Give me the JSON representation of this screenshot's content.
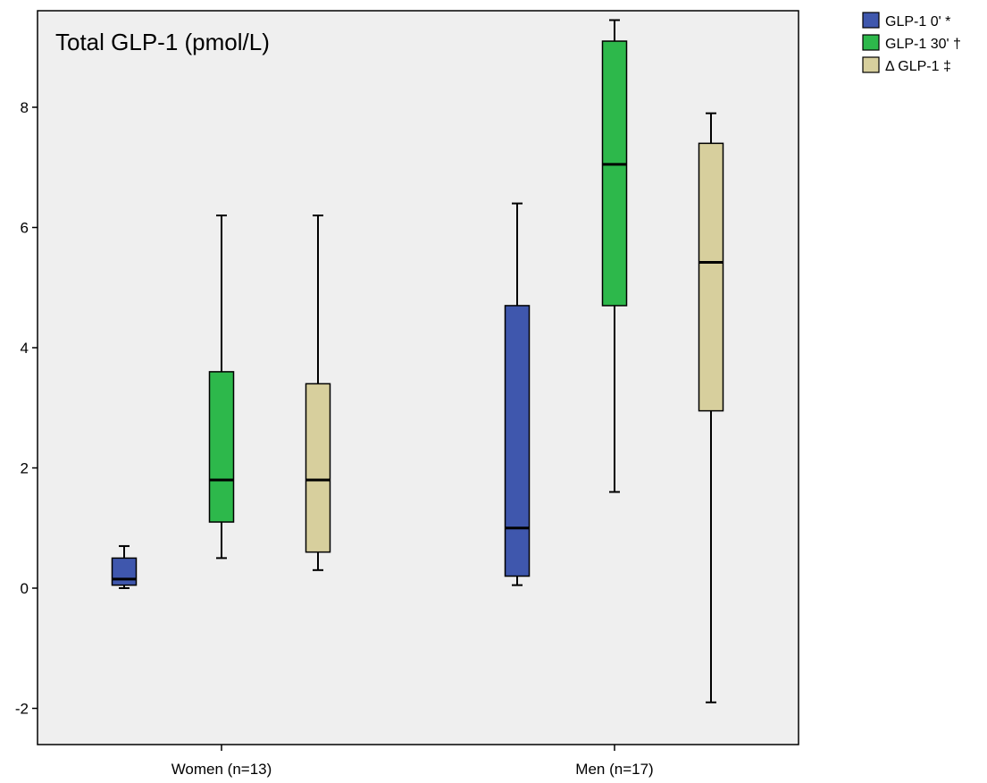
{
  "chart_data": {
    "type": "box",
    "title": "Total GLP-1 (pmol/L)",
    "xlabel": "",
    "ylabel": "",
    "ylim": [
      -2.6,
      9.7
    ],
    "yticks": [
      -2,
      0,
      2,
      4,
      6,
      8
    ],
    "ytick_labels": [
      "-2",
      "0",
      "2",
      "4",
      "6",
      "8"
    ],
    "categories": [
      "Women (n=13)",
      "Men (n=17)"
    ],
    "legend_position": "top-right-outside",
    "grid": false,
    "plot_background": "#efefef",
    "series": [
      {
        "name": "GLP-1 0' *",
        "color": "#3f57ad",
        "boxes": [
          {
            "min": 0.0,
            "q1": 0.05,
            "median": 0.15,
            "q3": 0.5,
            "max": 0.7
          },
          {
            "min": 0.05,
            "q1": 0.2,
            "median": 1.0,
            "q3": 4.7,
            "max": 6.4
          }
        ]
      },
      {
        "name": "GLP-1 30' †",
        "color": "#2db84b",
        "boxes": [
          {
            "min": 0.5,
            "q1": 1.1,
            "median": 1.8,
            "q3": 3.6,
            "max": 6.2
          },
          {
            "min": 1.6,
            "q1": 4.7,
            "median": 7.05,
            "q3": 9.1,
            "max": 9.45
          }
        ]
      },
      {
        "name": "Δ GLP-1 ‡",
        "color": "#d7cf9d",
        "boxes": [
          {
            "min": 0.3,
            "q1": 0.6,
            "median": 1.8,
            "q3": 3.4,
            "max": 6.2
          },
          {
            "min": -1.9,
            "q1": 2.95,
            "median": 5.42,
            "q3": 7.4,
            "max": 7.9
          }
        ]
      }
    ]
  }
}
